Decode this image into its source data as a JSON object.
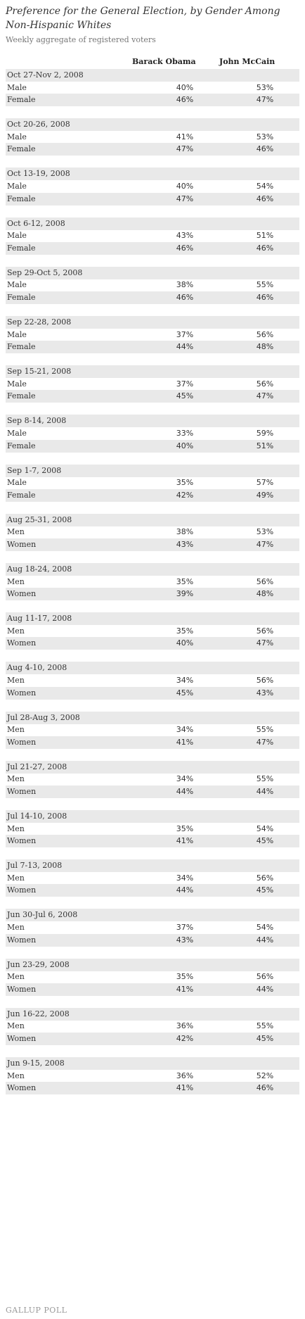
{
  "header": {
    "title": "Preference for the General Election, by Gender Among Non-Hispanic Whites",
    "subtitle": "Weekly aggregate of registered voters",
    "col1": "Barack Obama",
    "col2": "John McCain"
  },
  "footer": "GALLUP POLL",
  "chart_data": {
    "type": "table",
    "title": "Preference for the General Election, by Gender Among Non-Hispanic Whites",
    "subtitle": "Weekly aggregate of registered voters",
    "columns": [
      "Barack Obama",
      "John McCain"
    ],
    "periods": [
      {
        "period": "Oct 27-Nov 2, 2008",
        "rows": [
          {
            "group": "Male",
            "obama": "40%",
            "mccain": "53%"
          },
          {
            "group": "Female",
            "obama": "46%",
            "mccain": "47%"
          }
        ]
      },
      {
        "period": "Oct 20-26, 2008",
        "rows": [
          {
            "group": "Male",
            "obama": "41%",
            "mccain": "53%"
          },
          {
            "group": "Female",
            "obama": "47%",
            "mccain": "46%"
          }
        ]
      },
      {
        "period": "Oct 13-19, 2008",
        "rows": [
          {
            "group": "Male",
            "obama": "40%",
            "mccain": "54%"
          },
          {
            "group": "Female",
            "obama": "47%",
            "mccain": "46%"
          }
        ]
      },
      {
        "period": "Oct 6-12, 2008",
        "rows": [
          {
            "group": "Male",
            "obama": "43%",
            "mccain": "51%"
          },
          {
            "group": "Female",
            "obama": "46%",
            "mccain": "46%"
          }
        ]
      },
      {
        "period": "Sep 29-Oct 5, 2008",
        "rows": [
          {
            "group": "Male",
            "obama": "38%",
            "mccain": "55%"
          },
          {
            "group": "Female",
            "obama": "46%",
            "mccain": "46%"
          }
        ]
      },
      {
        "period": "Sep 22-28, 2008",
        "rows": [
          {
            "group": "Male",
            "obama": "37%",
            "mccain": "56%"
          },
          {
            "group": "Female",
            "obama": "44%",
            "mccain": "48%"
          }
        ]
      },
      {
        "period": "Sep 15-21, 2008",
        "rows": [
          {
            "group": "Male",
            "obama": "37%",
            "mccain": "56%"
          },
          {
            "group": "Female",
            "obama": "45%",
            "mccain": "47%"
          }
        ]
      },
      {
        "period": "Sep 8-14, 2008",
        "rows": [
          {
            "group": "Male",
            "obama": "33%",
            "mccain": "59%"
          },
          {
            "group": "Female",
            "obama": "40%",
            "mccain": "51%"
          }
        ]
      },
      {
        "period": "Sep 1-7, 2008",
        "rows": [
          {
            "group": "Male",
            "obama": "35%",
            "mccain": "57%"
          },
          {
            "group": "Female",
            "obama": "42%",
            "mccain": "49%"
          }
        ]
      },
      {
        "period": "Aug 25-31, 2008",
        "rows": [
          {
            "group": "Men",
            "obama": "38%",
            "mccain": "53%"
          },
          {
            "group": "Women",
            "obama": "43%",
            "mccain": "47%"
          }
        ]
      },
      {
        "period": "Aug 18-24, 2008",
        "rows": [
          {
            "group": "Men",
            "obama": "35%",
            "mccain": "56%"
          },
          {
            "group": "Women",
            "obama": "39%",
            "mccain": "48%"
          }
        ]
      },
      {
        "period": "Aug 11-17, 2008",
        "rows": [
          {
            "group": "Men",
            "obama": "35%",
            "mccain": "56%"
          },
          {
            "group": "Women",
            "obama": "40%",
            "mccain": "47%"
          }
        ]
      },
      {
        "period": "Aug 4-10, 2008",
        "rows": [
          {
            "group": "Men",
            "obama": "34%",
            "mccain": "56%"
          },
          {
            "group": "Women",
            "obama": "45%",
            "mccain": "43%"
          }
        ]
      },
      {
        "period": "Jul 28-Aug 3, 2008",
        "rows": [
          {
            "group": "Men",
            "obama": "34%",
            "mccain": "55%"
          },
          {
            "group": "Women",
            "obama": "41%",
            "mccain": "47%"
          }
        ]
      },
      {
        "period": "Jul 21-27, 2008",
        "rows": [
          {
            "group": "Men",
            "obama": "34%",
            "mccain": "55%"
          },
          {
            "group": "Women",
            "obama": "44%",
            "mccain": "44%"
          }
        ]
      },
      {
        "period": "Jul 14-10, 2008",
        "rows": [
          {
            "group": "Men",
            "obama": "35%",
            "mccain": "54%"
          },
          {
            "group": "Women",
            "obama": "41%",
            "mccain": "45%"
          }
        ]
      },
      {
        "period": "Jul 7-13, 2008",
        "rows": [
          {
            "group": "Men",
            "obama": "34%",
            "mccain": "56%"
          },
          {
            "group": "Women",
            "obama": "44%",
            "mccain": "45%"
          }
        ]
      },
      {
        "period": "Jun 30-Jul 6, 2008",
        "rows": [
          {
            "group": "Men",
            "obama": "37%",
            "mccain": "54%"
          },
          {
            "group": "Women",
            "obama": "43%",
            "mccain": "44%"
          }
        ]
      },
      {
        "period": "Jun 23-29, 2008",
        "rows": [
          {
            "group": "Men",
            "obama": "35%",
            "mccain": "56%"
          },
          {
            "group": "Women",
            "obama": "41%",
            "mccain": "44%"
          }
        ]
      },
      {
        "period": "Jun 16-22, 2008",
        "rows": [
          {
            "group": "Men",
            "obama": "36%",
            "mccain": "55%"
          },
          {
            "group": "Women",
            "obama": "42%",
            "mccain": "45%"
          }
        ]
      },
      {
        "period": "Jun 9-15, 2008",
        "rows": [
          {
            "group": "Men",
            "obama": "36%",
            "mccain": "52%"
          },
          {
            "group": "Women",
            "obama": "41%",
            "mccain": "46%"
          }
        ]
      }
    ]
  }
}
